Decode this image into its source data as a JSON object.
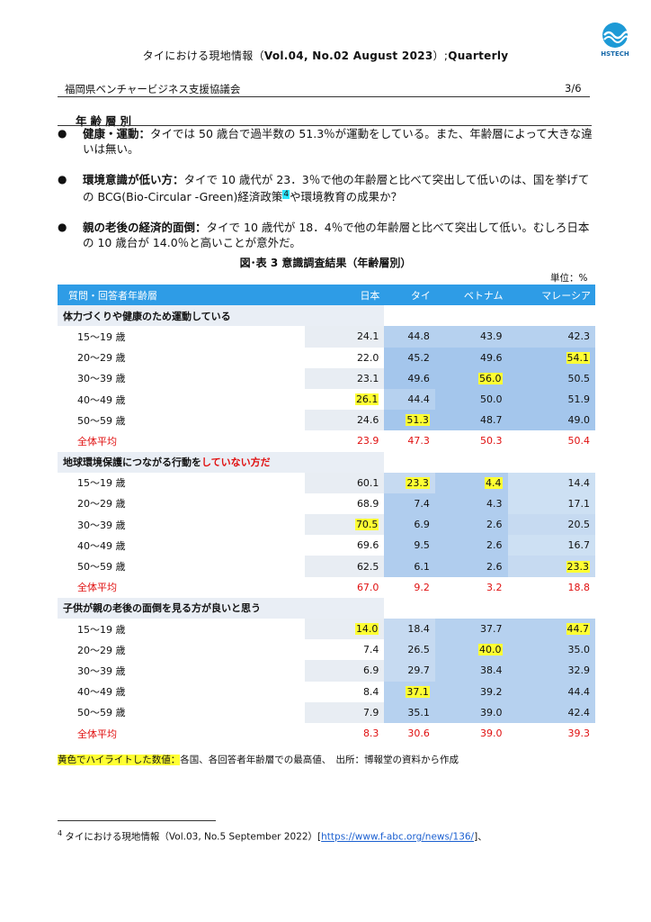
{
  "header": {
    "title_pre": "タイにおける現地情報（",
    "title_bold": "Vol.04, No.02  August 2023",
    "title_post": "）;",
    "title_tail": "Quarterly",
    "logo_text": "HSTECH",
    "organization": "福岡県ベンチャービジネス支援協議会",
    "page": "3/6"
  },
  "section": {
    "heading": "年齢層別",
    "bullets": [
      {
        "bold": "健康・運動：",
        "text": "タイでは 50 歳台で過半数の 51.3％が運動をしている。また、年齢層によって大きな違いは無い。"
      },
      {
        "bold": "環境意識が低い方：",
        "text": "タイで 10 歳代が 23．3％で他の年齢層と比べて突出して低いのは、国を挙げての BCG(Bio-Circular -Green)経済政策",
        "fnref": "4",
        "text2": "や環境教育の成果か？"
      },
      {
        "bold": "親の老後の経済的面倒：",
        "text": "タイで 10 歳代が 18．4％で他の年齢層と比べて突出して低い。むしろ日本の 10 歳台が 14.0％と高いことが意外だ。"
      }
    ]
  },
  "table": {
    "caption": "図･表 3  意識調査結果（年齢層別）",
    "unit": "単位：%",
    "columns": [
      "質問・回答者年齢層",
      "日本",
      "タイ",
      "ベトナム",
      "マレーシア"
    ],
    "groups": [
      {
        "title": "体力づくりや健康のため運動している",
        "title_red": "",
        "rows": [
          {
            "label": "15～19 歳",
            "values": [
              "24.1",
              "44.8",
              "43.9",
              "42.3"
            ],
            "hl": [
              false,
              false,
              false,
              false
            ]
          },
          {
            "label": "20～29 歳",
            "values": [
              "22.0",
              "45.2",
              "49.6",
              "54.1"
            ],
            "hl": [
              false,
              false,
              false,
              true
            ]
          },
          {
            "label": "30～39 歳",
            "values": [
              "23.1",
              "49.6",
              "56.0",
              "50.5"
            ],
            "hl": [
              false,
              false,
              true,
              false
            ]
          },
          {
            "label": "40～49 歳",
            "values": [
              "26.1",
              "44.4",
              "50.0",
              "51.9"
            ],
            "hl": [
              true,
              false,
              false,
              false
            ]
          },
          {
            "label": "50～59 歳",
            "values": [
              "24.6",
              "51.3",
              "48.7",
              "49.0"
            ],
            "hl": [
              false,
              true,
              false,
              false
            ]
          }
        ],
        "avg_label": "全体平均",
        "avg": [
          "23.9",
          "47.3",
          "50.3",
          "50.4"
        ]
      },
      {
        "title": "地球環境保護につながる行動を",
        "title_red": "していない方だ",
        "rows": [
          {
            "label": "15～19 歳",
            "values": [
              "60.1",
              "23.3",
              "4.4",
              "14.4"
            ],
            "hl": [
              false,
              true,
              true,
              false
            ]
          },
          {
            "label": "20～29 歳",
            "values": [
              "68.9",
              "7.4",
              "4.3",
              "17.1"
            ],
            "hl": [
              false,
              false,
              false,
              false
            ]
          },
          {
            "label": "30～39 歳",
            "values": [
              "70.5",
              "6.9",
              "2.6",
              "20.5"
            ],
            "hl": [
              true,
              false,
              false,
              false
            ]
          },
          {
            "label": "40～49 歳",
            "values": [
              "69.6",
              "9.5",
              "2.6",
              "16.7"
            ],
            "hl": [
              false,
              false,
              false,
              false
            ]
          },
          {
            "label": "50～59 歳",
            "values": [
              "62.5",
              "6.1",
              "2.6",
              "23.3"
            ],
            "hl": [
              false,
              false,
              false,
              true
            ]
          }
        ],
        "avg_label": "全体平均",
        "avg": [
          "67.0",
          "9.2",
          "3.2",
          "18.8"
        ]
      },
      {
        "title": "子供が親の老後の面倒を見る方が良いと思う",
        "title_red": "",
        "rows": [
          {
            "label": "15～19 歳",
            "values": [
              "14.0",
              "18.4",
              "37.7",
              "44.7"
            ],
            "hl": [
              true,
              false,
              false,
              true
            ]
          },
          {
            "label": "20～29 歳",
            "values": [
              "7.4",
              "26.5",
              "40.0",
              "35.0"
            ],
            "hl": [
              false,
              false,
              true,
              false
            ]
          },
          {
            "label": "30～39 歳",
            "values": [
              "6.9",
              "29.7",
              "38.4",
              "32.9"
            ],
            "hl": [
              false,
              false,
              false,
              false
            ]
          },
          {
            "label": "40～49 歳",
            "values": [
              "8.4",
              "37.1",
              "39.2",
              "44.4"
            ],
            "hl": [
              false,
              true,
              false,
              false
            ]
          },
          {
            "label": "50～59 歳",
            "values": [
              "7.9",
              "35.1",
              "39.0",
              "42.4"
            ],
            "hl": [
              false,
              false,
              false,
              false
            ]
          }
        ],
        "avg_label": "全体平均",
        "avg": [
          "8.3",
          "30.6",
          "39.0",
          "39.3"
        ]
      }
    ],
    "legend_highlight": "黄色でハイライトした数値：",
    "legend_text": "各国、各回答者年齢層での最高値、　出所：博報堂の資料から作成"
  },
  "footnote": {
    "number": "4",
    "text": " タイにおける現地情報（Vol.03, No.5 September 2022）[",
    "link": "https://www.f-abc.org/news/136/",
    "tail": "]、"
  },
  "colors": {
    "header_blue": "#2e9ce6",
    "highlight": "#ffff33",
    "red": "#e01010"
  }
}
